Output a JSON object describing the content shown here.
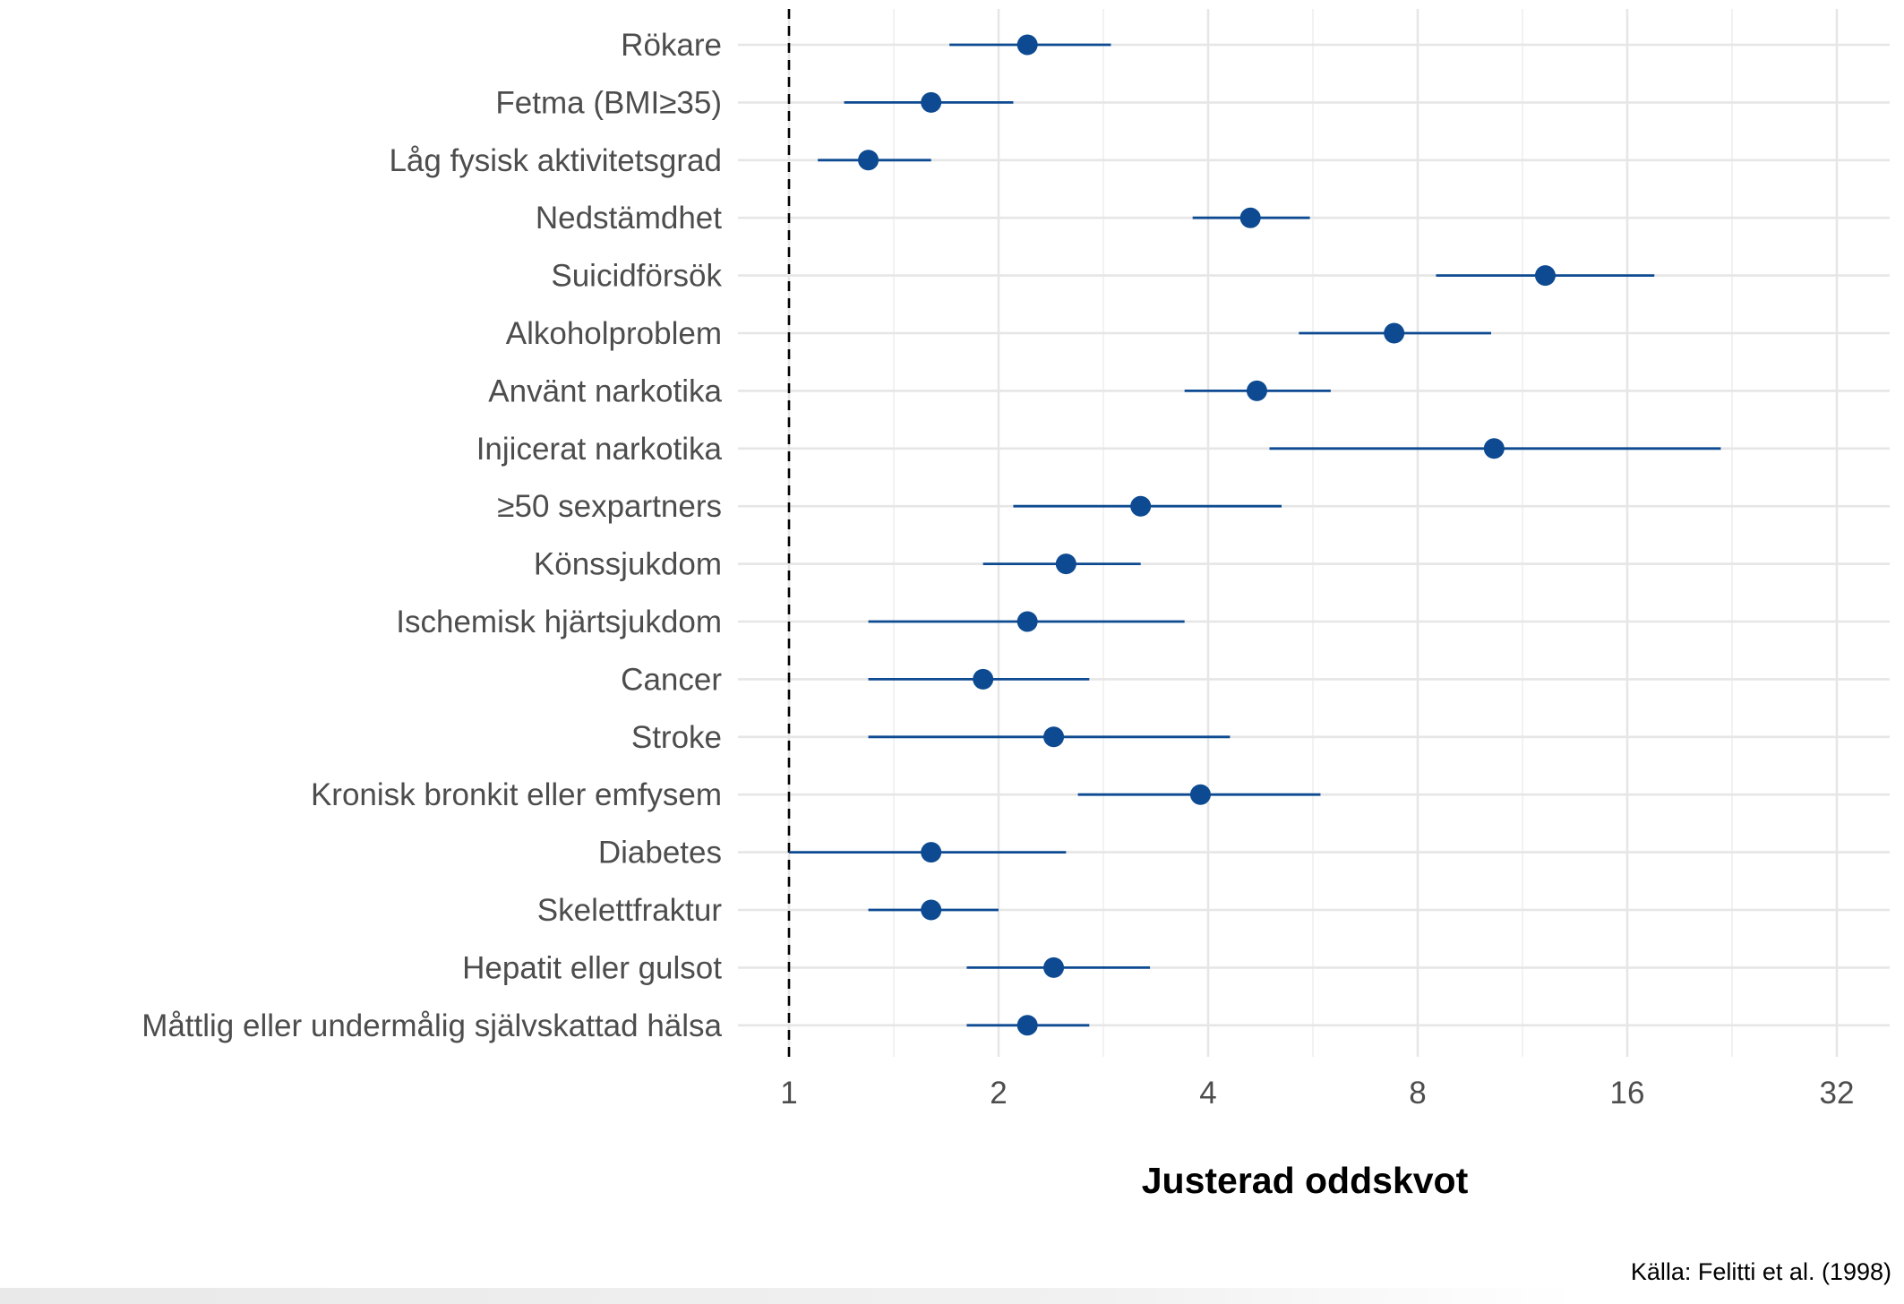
{
  "chart_data": {
    "type": "forest",
    "xscale": "log2",
    "xlim": [
      0.8,
      36
    ],
    "xticks": [
      "1",
      "2",
      "4",
      "8",
      "16",
      "32"
    ],
    "xlabel": "Justerad oddskvot",
    "reference_line": 1,
    "grid": true,
    "point_color": "#0d4a91",
    "rows": [
      {
        "label": "Rökare",
        "or": 2.2,
        "lo": 1.7,
        "hi": 2.9
      },
      {
        "label": "Fetma (BMI≥35)",
        "or": 1.6,
        "lo": 1.2,
        "hi": 2.1
      },
      {
        "label": "Låg fysisk aktivitetsgrad",
        "or": 1.3,
        "lo": 1.1,
        "hi": 1.6
      },
      {
        "label": "Nedstämdhet",
        "or": 4.6,
        "lo": 3.8,
        "hi": 5.6
      },
      {
        "label": "Suicidförsök",
        "or": 12.2,
        "lo": 8.5,
        "hi": 17.5
      },
      {
        "label": "Alkoholproblem",
        "or": 7.4,
        "lo": 5.4,
        "hi": 10.2
      },
      {
        "label": "Använt narkotika",
        "or": 4.7,
        "lo": 3.7,
        "hi": 6.0
      },
      {
        "label": "Injicerat narkotika",
        "or": 10.3,
        "lo": 4.9,
        "hi": 21.8
      },
      {
        "label": "≥50 sexpartners",
        "or": 3.2,
        "lo": 2.1,
        "hi": 5.1
      },
      {
        "label": "Könssjukdom",
        "or": 2.5,
        "lo": 1.9,
        "hi": 3.2
      },
      {
        "label": "Ischemisk hjärtsjukdom",
        "or": 2.2,
        "lo": 1.3,
        "hi": 3.7
      },
      {
        "label": "Cancer",
        "or": 1.9,
        "lo": 1.3,
        "hi": 2.7
      },
      {
        "label": "Stroke",
        "or": 2.4,
        "lo": 1.3,
        "hi": 4.3
      },
      {
        "label": "Kronisk bronkit eller emfysem",
        "or": 3.9,
        "lo": 2.6,
        "hi": 5.8
      },
      {
        "label": "Diabetes",
        "or": 1.6,
        "lo": 1.0,
        "hi": 2.5
      },
      {
        "label": "Skelettfraktur",
        "or": 1.6,
        "lo": 1.3,
        "hi": 2.0
      },
      {
        "label": "Hepatit eller gulsot",
        "or": 2.4,
        "lo": 1.8,
        "hi": 3.3
      },
      {
        "label": "Måttlig eller undermålig självskattad hälsa",
        "or": 2.2,
        "lo": 1.8,
        "hi": 2.7
      }
    ]
  },
  "source": "Källa: Felitti et al. (1998)"
}
